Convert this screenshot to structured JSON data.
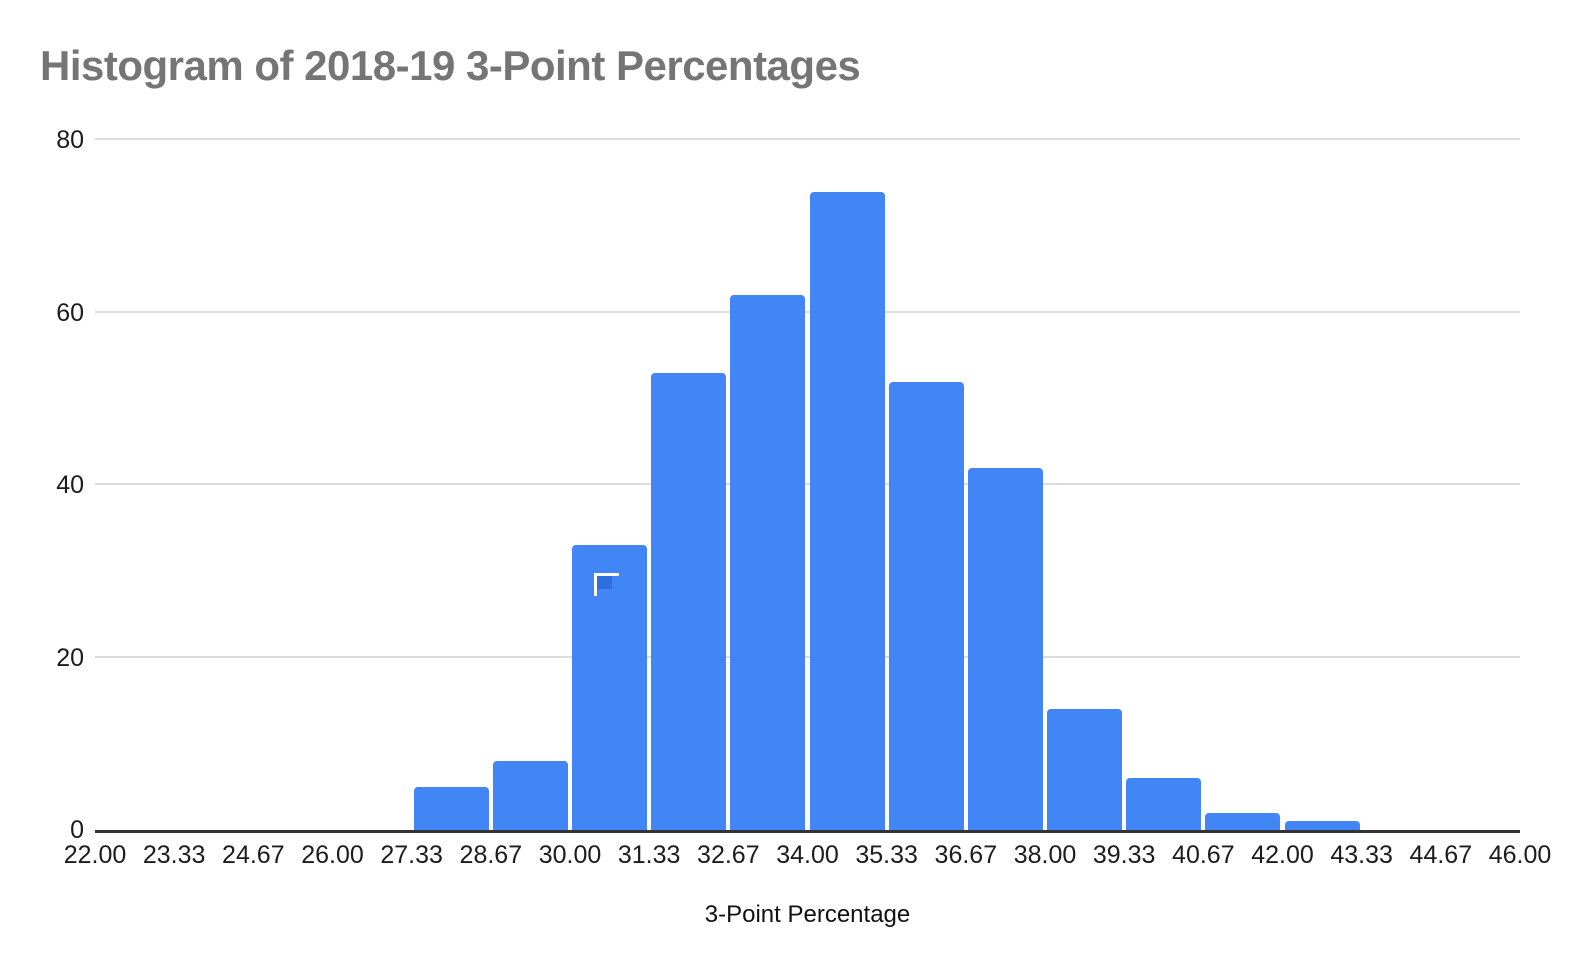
{
  "chart_data": {
    "type": "bar",
    "subtype": "histogram",
    "title": "Histogram of 2018-19 3-Point Percentages",
    "title_color": "#757575",
    "xlabel": "3-Point Percentage",
    "ylabel": "",
    "bar_color": "#4285f4",
    "gridline_color": "#dddddd",
    "axis_line_color": "#333333",
    "tick_label_color": "#1c1c1c",
    "grid": true,
    "legend": "none",
    "x_range": [
      22,
      46
    ],
    "y_range": [
      0,
      80
    ],
    "y_ticks": [
      0,
      20,
      40,
      60,
      80
    ],
    "y_tick_labels": [
      "0",
      "20",
      "40",
      "60",
      "80"
    ],
    "x_tick_labels": [
      "22.00",
      "23.33",
      "24.67",
      "26.00",
      "27.33",
      "28.67",
      "30.00",
      "31.33",
      "32.67",
      "34.00",
      "35.33",
      "36.67",
      "38.00",
      "39.33",
      "40.67",
      "42.00",
      "43.33",
      "44.67",
      "46.00"
    ],
    "bins": [
      {
        "start": "22.00",
        "end": "23.33",
        "count": 0
      },
      {
        "start": "23.33",
        "end": "24.67",
        "count": 0
      },
      {
        "start": "24.67",
        "end": "26.00",
        "count": 0
      },
      {
        "start": "26.00",
        "end": "27.33",
        "count": 0
      },
      {
        "start": "27.33",
        "end": "28.67",
        "count": 5
      },
      {
        "start": "28.67",
        "end": "30.00",
        "count": 8
      },
      {
        "start": "30.00",
        "end": "31.33",
        "count": 33
      },
      {
        "start": "31.33",
        "end": "32.67",
        "count": 53
      },
      {
        "start": "32.67",
        "end": "34.00",
        "count": 62
      },
      {
        "start": "34.00",
        "end": "35.33",
        "count": 74
      },
      {
        "start": "35.33",
        "end": "36.67",
        "count": 52
      },
      {
        "start": "36.67",
        "end": "38.00",
        "count": 42
      },
      {
        "start": "38.00",
        "end": "39.33",
        "count": 14
      },
      {
        "start": "39.33",
        "end": "40.67",
        "count": 6
      },
      {
        "start": "40.67",
        "end": "42.00",
        "count": 2
      },
      {
        "start": "42.00",
        "end": "43.33",
        "count": 1
      },
      {
        "start": "43.33",
        "end": "44.67",
        "count": 0
      },
      {
        "start": "44.67",
        "end": "46.00",
        "count": 0
      }
    ],
    "selection_marker": {
      "on_bin_start": "30.00",
      "marker_inner_color": "#2f6fdd",
      "marker_bracket_color": "#ffffff"
    }
  }
}
